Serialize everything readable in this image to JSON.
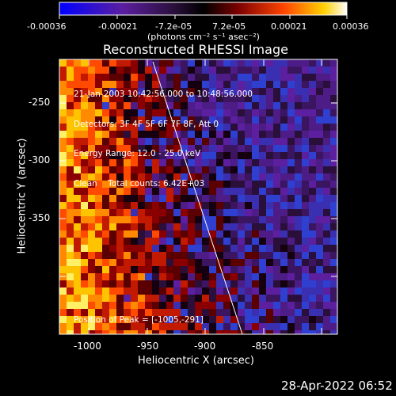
{
  "colorbar": {
    "tick_labels": [
      "-0.00036",
      "-0.00021",
      "-7.2e-05",
      "7.2e-05",
      "0.00021",
      "0.00036"
    ],
    "unit_label": "(photons cm⁻² s⁻¹ asec⁻²)",
    "colors": [
      "#0000ff",
      "#5b1fa0",
      "#2a0f3a",
      "#000000",
      "#7a0000",
      "#ff4400",
      "#ffd000",
      "#ffffff"
    ]
  },
  "plot": {
    "title": "Reconstructed RHESSI Image",
    "info_lines": [
      "21-Jan-2003 10:42:56.000 to 10:48:56.000",
      "Detectors: 3F 4F 5F 6F 7F 8F, Att 0",
      "Energy Range: 12.0 - 25.0 keV",
      "Clean    Total counts: 6.42E+03"
    ],
    "peak_text": "Position of Peak = [-1005,-291]"
  },
  "axes": {
    "xlabel": "Heliocentric X (arcsec)",
    "ylabel": "Heliocentric Y (arcsec)",
    "x_ticks": [
      "-1000",
      "-950",
      "-900",
      "-850"
    ],
    "y_ticks": [
      "-250",
      "-300",
      "-350"
    ]
  },
  "footer": {
    "timestamp": "28-Apr-2022 06:52"
  }
}
